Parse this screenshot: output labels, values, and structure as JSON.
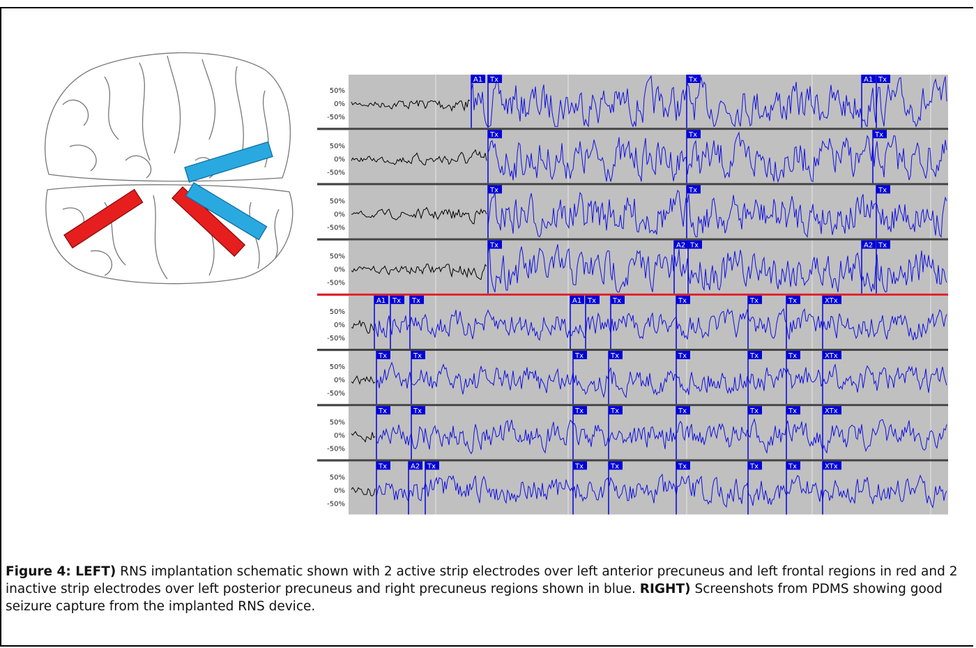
{
  "eeg": {
    "axis_labels": [
      "50%",
      "0%",
      "-50%"
    ],
    "channels": [
      {
        "markers": [
          "A1",
          "Tx",
          "Tx",
          "A1",
          "Tx"
        ]
      },
      {
        "markers": [
          "Tx",
          "Tx",
          "Tx"
        ]
      },
      {
        "markers": [
          "Tx",
          "Tx",
          "Tx"
        ]
      },
      {
        "markers": [
          "Tx",
          "A2",
          "Tx",
          "A2",
          "Tx"
        ]
      },
      {
        "markers": [
          "A1",
          "Tx",
          "Tx",
          "A1",
          "Tx",
          "Tx",
          "Tx",
          "Tx",
          "Tx",
          "XTx"
        ]
      },
      {
        "markers": [
          "Tx",
          "Tx",
          "Tx",
          "Tx",
          "Tx",
          "Tx",
          "Tx",
          "XTx"
        ]
      },
      {
        "markers": [
          "Tx",
          "Tx",
          "Tx",
          "Tx",
          "Tx",
          "Tx",
          "Tx",
          "XTx"
        ]
      },
      {
        "markers": [
          "Tx",
          "A2",
          "Tx",
          "Tx",
          "Tx",
          "Tx",
          "Tx",
          "Tx",
          "XTx"
        ]
      }
    ]
  },
  "caption": {
    "label": "Figure 4: LEFT)",
    "text1": "RNS implantation schematic shown with 2 active strip electrodes over left anterior precuneus and left frontal regions in red and 2 inactive strip electrodes over left posterior precuneus and right precuneus regions shown in blue.",
    "label2": "RIGHT)",
    "text2": "Screenshots from PDMS showing good seizure capture from the implanted RNS device."
  }
}
